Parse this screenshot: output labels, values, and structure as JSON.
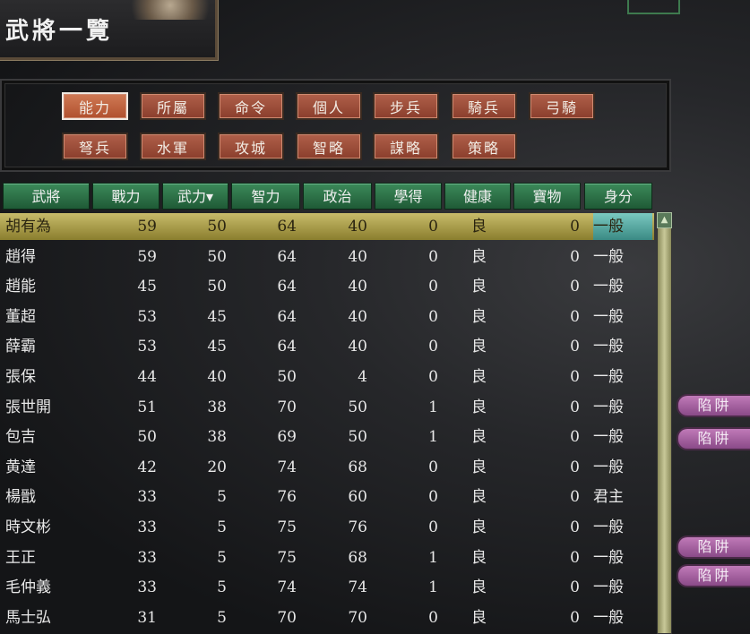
{
  "title": "武將一覽",
  "tabs": [
    "能力",
    "所屬",
    "命令",
    "個人",
    "步兵",
    "騎兵",
    "弓騎",
    "弩兵",
    "水軍",
    "攻城",
    "智略",
    "謀略",
    "策略"
  ],
  "active_tab": "能力",
  "columns": [
    "武將",
    "戰力",
    "武力▾",
    "智力",
    "政治",
    "學得",
    "健康",
    "寶物",
    "身分"
  ],
  "sort_column": "武力",
  "rows": [
    [
      "胡有為",
      "59",
      "50",
      "64",
      "40",
      "0",
      "良",
      "0",
      "一般"
    ],
    [
      "趙得",
      "59",
      "50",
      "64",
      "40",
      "0",
      "良",
      "0",
      "一般"
    ],
    [
      "趙能",
      "45",
      "50",
      "64",
      "40",
      "0",
      "良",
      "0",
      "一般"
    ],
    [
      "董超",
      "53",
      "45",
      "64",
      "40",
      "0",
      "良",
      "0",
      "一般"
    ],
    [
      "薛霸",
      "53",
      "45",
      "64",
      "40",
      "0",
      "良",
      "0",
      "一般"
    ],
    [
      "張保",
      "44",
      "40",
      "50",
      "4",
      "0",
      "良",
      "0",
      "一般"
    ],
    [
      "張世開",
      "51",
      "38",
      "70",
      "50",
      "1",
      "良",
      "0",
      "一般"
    ],
    [
      "包吉",
      "50",
      "38",
      "69",
      "50",
      "1",
      "良",
      "0",
      "一般"
    ],
    [
      "黄達",
      "42",
      "20",
      "74",
      "68",
      "0",
      "良",
      "0",
      "一般"
    ],
    [
      "楊戩",
      "33",
      "5",
      "76",
      "60",
      "0",
      "良",
      "0",
      "君主"
    ],
    [
      "時文彬",
      "33",
      "5",
      "75",
      "76",
      "0",
      "良",
      "0",
      "一般"
    ],
    [
      "王正",
      "33",
      "5",
      "75",
      "68",
      "1",
      "良",
      "0",
      "一般"
    ],
    [
      "毛仲義",
      "33",
      "5",
      "74",
      "74",
      "1",
      "良",
      "0",
      "一般"
    ],
    [
      "馬士弘",
      "31",
      "5",
      "70",
      "70",
      "0",
      "良",
      "0",
      "一般"
    ]
  ],
  "selected_row": 0,
  "trap_buttons": [
    "陷阱",
    "陷阱",
    "陷阱",
    "陷阱"
  ],
  "scroll_up_icon": "▲"
}
